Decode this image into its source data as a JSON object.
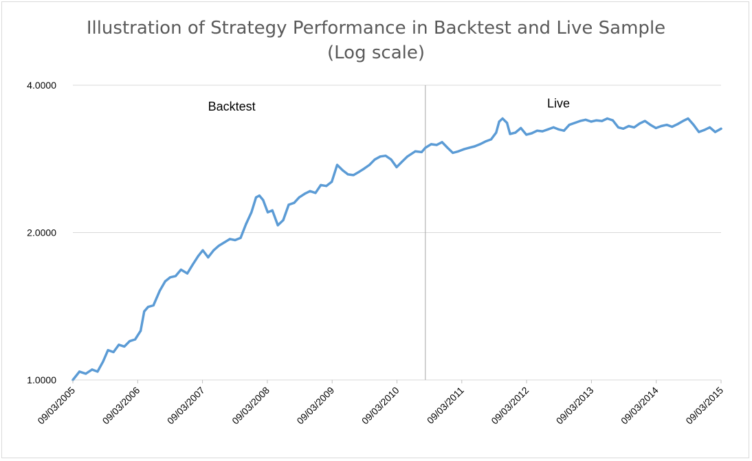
{
  "chart_data": {
    "type": "line",
    "title": "Illustration of Strategy Performance in Backtest and Live Sample",
    "subtitle": "(Log scale)",
    "y_scale": "log",
    "ylim": [
      1,
      4
    ],
    "y_ticks": [
      {
        "value": 1,
        "label": "1.0000"
      },
      {
        "value": 2,
        "label": "2.0000"
      },
      {
        "value": 4,
        "label": "4.0000"
      }
    ],
    "x_ticks": [
      "09/03/2005",
      "09/03/2006",
      "09/03/2007",
      "09/03/2008",
      "09/03/2009",
      "09/03/2010",
      "09/03/2011",
      "09/03/2012",
      "09/03/2013",
      "09/03/2014",
      "09/03/2015"
    ],
    "xlim": [
      "2005-09-03",
      "2015-09-03"
    ],
    "split_date": "2011-02-10",
    "annotations": [
      {
        "text": "Backtest",
        "x": "2008-02-15",
        "y": 3.55
      },
      {
        "text": "Live",
        "x": "2013-03-01",
        "y": 3.6
      }
    ],
    "series": [
      {
        "color": "#5b9bd5",
        "points": [
          [
            "2005-09-03",
            1.0
          ],
          [
            "2005-10-10",
            1.04
          ],
          [
            "2005-11-15",
            1.03
          ],
          [
            "2005-12-20",
            1.05
          ],
          [
            "2006-01-20",
            1.04
          ],
          [
            "2006-02-20",
            1.09
          ],
          [
            "2006-03-20",
            1.15
          ],
          [
            "2006-04-20",
            1.14
          ],
          [
            "2006-05-20",
            1.18
          ],
          [
            "2006-06-20",
            1.17
          ],
          [
            "2006-07-20",
            1.2
          ],
          [
            "2006-08-20",
            1.21
          ],
          [
            "2006-09-20",
            1.26
          ],
          [
            "2006-10-10",
            1.38
          ],
          [
            "2006-11-01",
            1.41
          ],
          [
            "2006-12-01",
            1.42
          ],
          [
            "2007-01-05",
            1.52
          ],
          [
            "2007-02-05",
            1.59
          ],
          [
            "2007-03-05",
            1.62
          ],
          [
            "2007-04-05",
            1.63
          ],
          [
            "2007-05-05",
            1.68
          ],
          [
            "2007-06-10",
            1.65
          ],
          [
            "2007-07-10",
            1.72
          ],
          [
            "2007-08-10",
            1.79
          ],
          [
            "2007-09-05",
            1.84
          ],
          [
            "2007-10-05",
            1.78
          ],
          [
            "2007-11-05",
            1.84
          ],
          [
            "2007-12-05",
            1.88
          ],
          [
            "2008-01-05",
            1.91
          ],
          [
            "2008-02-05",
            1.94
          ],
          [
            "2008-03-05",
            1.93
          ],
          [
            "2008-04-05",
            1.95
          ],
          [
            "2008-05-05",
            2.08
          ],
          [
            "2008-06-05",
            2.2
          ],
          [
            "2008-07-01",
            2.36
          ],
          [
            "2008-07-20",
            2.38
          ],
          [
            "2008-08-10",
            2.33
          ],
          [
            "2008-09-05",
            2.2
          ],
          [
            "2008-10-01",
            2.22
          ],
          [
            "2008-11-01",
            2.07
          ],
          [
            "2008-12-01",
            2.12
          ],
          [
            "2009-01-01",
            2.28
          ],
          [
            "2009-02-01",
            2.3
          ],
          [
            "2009-03-01",
            2.36
          ],
          [
            "2009-04-01",
            2.4
          ],
          [
            "2009-05-01",
            2.43
          ],
          [
            "2009-06-01",
            2.41
          ],
          [
            "2009-07-01",
            2.5
          ],
          [
            "2009-08-01",
            2.49
          ],
          [
            "2009-09-01",
            2.54
          ],
          [
            "2009-10-01",
            2.75
          ],
          [
            "2009-11-01",
            2.68
          ],
          [
            "2009-12-01",
            2.63
          ],
          [
            "2010-01-01",
            2.62
          ],
          [
            "2010-02-01",
            2.66
          ],
          [
            "2010-03-01",
            2.7
          ],
          [
            "2010-04-01",
            2.75
          ],
          [
            "2010-05-01",
            2.82
          ],
          [
            "2010-06-01",
            2.86
          ],
          [
            "2010-07-01",
            2.87
          ],
          [
            "2010-08-01",
            2.82
          ],
          [
            "2010-09-01",
            2.72
          ],
          [
            "2010-10-01",
            2.79
          ],
          [
            "2010-11-01",
            2.86
          ],
          [
            "2010-12-15",
            2.93
          ],
          [
            "2011-01-20",
            2.92
          ],
          [
            "2011-02-10",
            2.98
          ],
          [
            "2011-03-15",
            3.03
          ],
          [
            "2011-04-15",
            3.02
          ],
          [
            "2011-05-15",
            3.06
          ],
          [
            "2011-06-15",
            2.98
          ],
          [
            "2011-07-15",
            2.91
          ],
          [
            "2011-08-15",
            2.93
          ],
          [
            "2011-09-15",
            2.96
          ],
          [
            "2011-10-15",
            2.98
          ],
          [
            "2011-11-15",
            3.0
          ],
          [
            "2011-12-15",
            3.03
          ],
          [
            "2012-01-15",
            3.07
          ],
          [
            "2012-02-15",
            3.1
          ],
          [
            "2012-03-15",
            3.2
          ],
          [
            "2012-04-01",
            3.37
          ],
          [
            "2012-04-20",
            3.42
          ],
          [
            "2012-05-15",
            3.35
          ],
          [
            "2012-06-01",
            3.18
          ],
          [
            "2012-07-01",
            3.2
          ],
          [
            "2012-08-01",
            3.27
          ],
          [
            "2012-09-01",
            3.17
          ],
          [
            "2012-10-01",
            3.19
          ],
          [
            "2012-11-01",
            3.23
          ],
          [
            "2012-12-01",
            3.22
          ],
          [
            "2013-01-01",
            3.25
          ],
          [
            "2013-02-01",
            3.28
          ],
          [
            "2013-03-01",
            3.25
          ],
          [
            "2013-04-01",
            3.23
          ],
          [
            "2013-05-01",
            3.32
          ],
          [
            "2013-06-01",
            3.35
          ],
          [
            "2013-07-01",
            3.38
          ],
          [
            "2013-08-01",
            3.4
          ],
          [
            "2013-09-01",
            3.37
          ],
          [
            "2013-10-01",
            3.39
          ],
          [
            "2013-11-01",
            3.38
          ],
          [
            "2013-12-01",
            3.42
          ],
          [
            "2014-01-01",
            3.39
          ],
          [
            "2014-02-01",
            3.28
          ],
          [
            "2014-03-01",
            3.26
          ],
          [
            "2014-04-01",
            3.3
          ],
          [
            "2014-05-01",
            3.28
          ],
          [
            "2014-06-01",
            3.34
          ],
          [
            "2014-07-01",
            3.38
          ],
          [
            "2014-08-01",
            3.32
          ],
          [
            "2014-09-01",
            3.27
          ],
          [
            "2014-10-01",
            3.3
          ],
          [
            "2014-11-01",
            3.32
          ],
          [
            "2014-12-01",
            3.29
          ],
          [
            "2015-01-01",
            3.33
          ],
          [
            "2015-02-01",
            3.38
          ],
          [
            "2015-03-01",
            3.42
          ],
          [
            "2015-04-01",
            3.32
          ],
          [
            "2015-05-01",
            3.21
          ],
          [
            "2015-06-01",
            3.24
          ],
          [
            "2015-07-01",
            3.28
          ],
          [
            "2015-08-01",
            3.21
          ],
          [
            "2015-09-03",
            3.26
          ]
        ]
      }
    ]
  }
}
